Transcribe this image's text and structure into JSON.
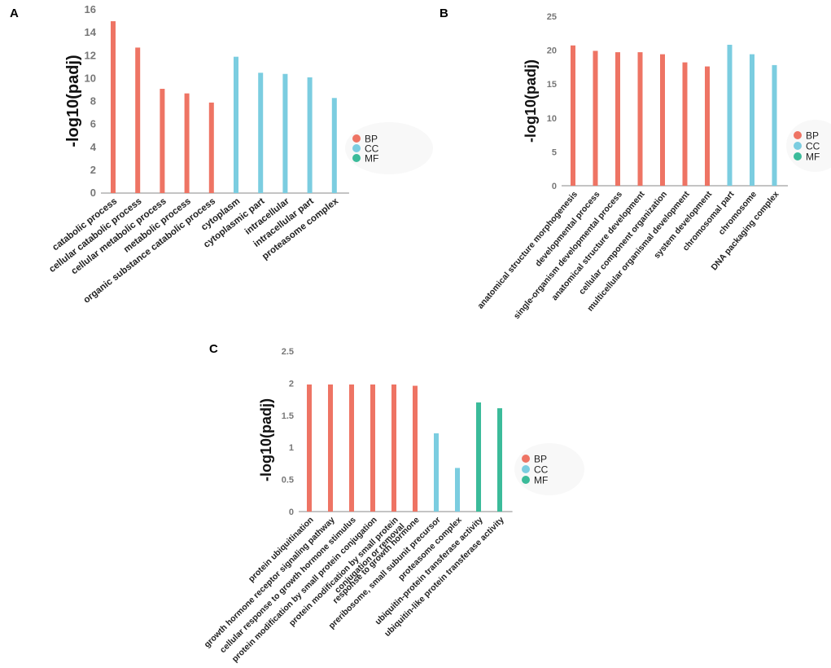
{
  "figure": {
    "panel_letters": [
      "A",
      "B",
      "C"
    ]
  },
  "colors": {
    "BP": "#ee7464",
    "CC": "#7bcde0",
    "MF": "#3bbb9a",
    "axis": "#888888",
    "tick_text": "#777777"
  },
  "chart_data": [
    {
      "panel": "A",
      "type": "bar",
      "ylabel": "-log10(padj)",
      "ylim": [
        0,
        16
      ],
      "yticks": [
        "0",
        "2",
        "4",
        "6",
        "8",
        "10",
        "12",
        "14",
        "16"
      ],
      "categories": [
        "catabolic process",
        "cellular catabolic process",
        "cellular metabolic process",
        "metabolic process",
        "organic substance catabolic process",
        "cytoplasm",
        "cytoplasmic part",
        "intracellular",
        "intracellular part",
        "proteasome complex"
      ],
      "values": [
        15.0,
        12.7,
        9.1,
        8.7,
        7.9,
        11.9,
        10.5,
        10.4,
        10.1,
        8.3
      ],
      "groups": [
        "BP",
        "BP",
        "BP",
        "BP",
        "BP",
        "CC",
        "CC",
        "CC",
        "CC",
        "CC"
      ],
      "legend": [
        "BP",
        "CC",
        "MF"
      ]
    },
    {
      "panel": "B",
      "type": "bar",
      "ylabel": "-log10(padj)",
      "ylim": [
        0,
        25
      ],
      "yticks": [
        "0",
        "5",
        "10",
        "15",
        "20",
        "25"
      ],
      "categories": [
        "anatomical structure morphogenesis",
        "developmental process",
        "single-organism developmental process",
        "anatomical structure development",
        "cellular component organization",
        "multicellular organismal development",
        "system development",
        "chromosomal part",
        "chromosome",
        "DNA packaging complex"
      ],
      "values": [
        20.7,
        19.9,
        19.7,
        19.7,
        19.4,
        18.2,
        17.6,
        20.8,
        19.4,
        17.8
      ],
      "groups": [
        "BP",
        "BP",
        "BP",
        "BP",
        "BP",
        "BP",
        "BP",
        "CC",
        "CC",
        "CC"
      ],
      "legend": [
        "BP",
        "CC",
        "MF"
      ]
    },
    {
      "panel": "C",
      "type": "bar",
      "ylabel": "-log10(padj)",
      "ylim": [
        0,
        2.5
      ],
      "yticks": [
        "0",
        "0.5",
        "1",
        "1.5",
        "2",
        "2.5"
      ],
      "categories": [
        "protein ubiquitination",
        "growth hormone receptor signaling pathway",
        "cellular response to growth hormone stimulus",
        "protein modification by small protein conjugation",
        "protein modification by small protein conjugation or removal",
        "response to growth hormone",
        "preribosome, small subunit precursor",
        "proteasome complex",
        "ubiquitin-protein transferase activity",
        "ubiquitin-like protein transferase activity"
      ],
      "label_lines": [
        [
          "protein ubiquitination"
        ],
        [
          "growth hormone receptor signaling pathway"
        ],
        [
          "cellular response to growth hormone stimulus"
        ],
        [
          "protein modification by small protein conjugation"
        ],
        [
          "protein modification by small protein",
          "conjugation or removal"
        ],
        [
          "response to growth hormone"
        ],
        [
          "preribosome, small subunit precursor"
        ],
        [
          "proteasome complex"
        ],
        [
          "ubiquitin-protein transferase activity"
        ],
        [
          "ubiquitin-like protein transferase activity"
        ]
      ],
      "values": [
        1.98,
        1.98,
        1.98,
        1.98,
        1.98,
        1.96,
        1.22,
        0.68,
        1.7,
        1.61
      ],
      "groups": [
        "BP",
        "BP",
        "BP",
        "BP",
        "BP",
        "BP",
        "CC",
        "CC",
        "MF",
        "MF"
      ],
      "legend": [
        "BP",
        "CC",
        "MF"
      ]
    }
  ]
}
